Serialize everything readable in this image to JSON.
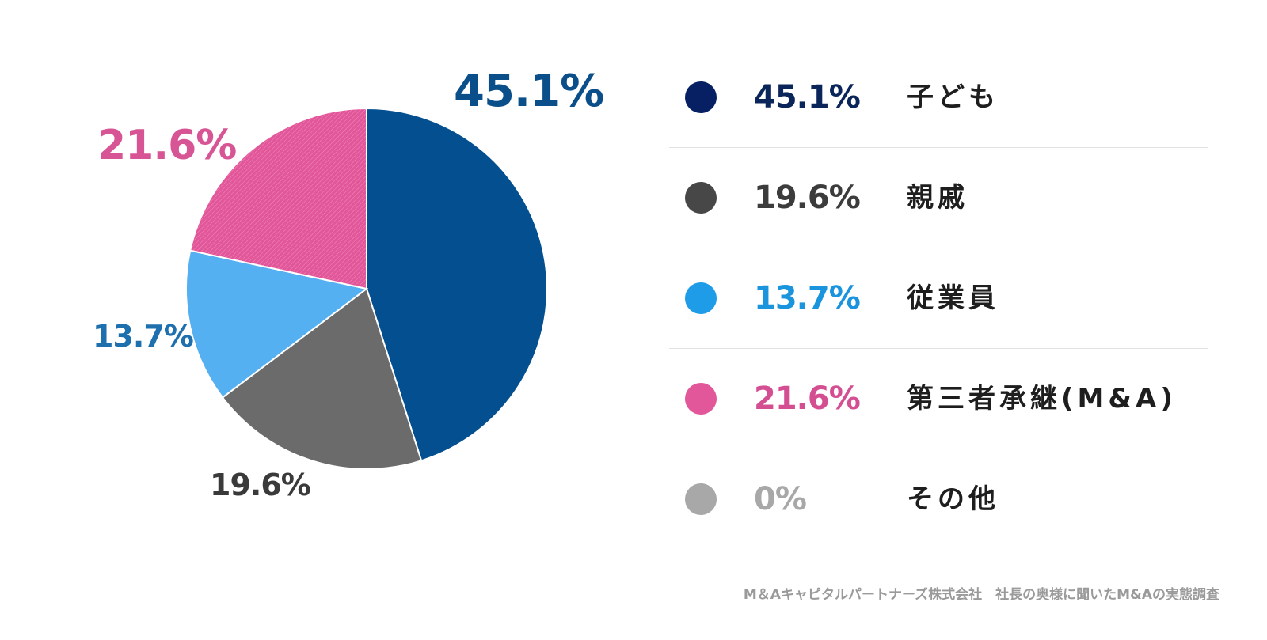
{
  "chart_data": {
    "type": "pie",
    "slices": [
      {
        "label": "子ども",
        "value": 45.1,
        "display": "45.1%",
        "color": "#034f90",
        "legend_color": "#062063",
        "text_color": "#0b4f8a",
        "legend_text_color": "#0a2559"
      },
      {
        "label": "親戚",
        "value": 19.6,
        "display": "19.6%",
        "color": "#6b6b6b",
        "legend_color": "#474747",
        "text_color": "#3a3a3a",
        "legend_text_color": "#3c3c3c"
      },
      {
        "label": "従業員",
        "value": 13.7,
        "display": "13.7%",
        "color": "#55b0f2",
        "legend_color": "#1e9ce8",
        "text_color": "#1e6fad",
        "legend_text_color": "#1a94dd"
      },
      {
        "label": "第三者承継(M&A)",
        "value": 21.6,
        "display": "21.6%",
        "color": "#e2579a",
        "legend_color": "#e2579a",
        "text_color": "#d85595",
        "legend_text_color": "#d44f92"
      },
      {
        "label": "その他",
        "value": 0,
        "display": "0%",
        "color": "#aaaaaa",
        "legend_color": "#a8a8a8",
        "text_color": "#a8a8a8",
        "legend_text_color": "#a8a8a8"
      }
    ],
    "start_angle_deg": 0,
    "direction": "clockwise"
  },
  "source_note": "M＆Aキャピタルパートナーズ株式会社　社長の奥様に聞いたM&Aの実態調査"
}
